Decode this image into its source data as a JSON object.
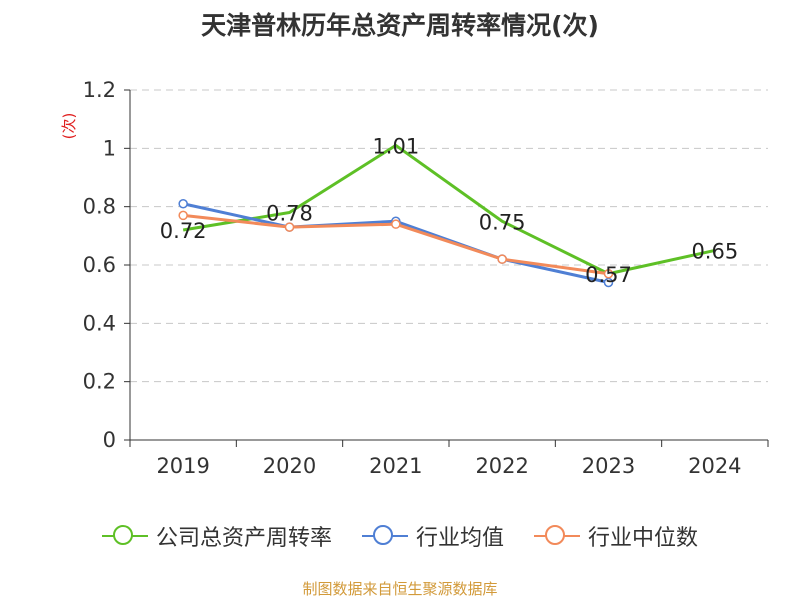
{
  "chart_data": {
    "type": "line",
    "title": "天津普林历年总资产周转率情况(次)",
    "ylabel": "(次)",
    "xlabel": "",
    "categories": [
      "2019",
      "2020",
      "2021",
      "2022",
      "2023",
      "2024"
    ],
    "ylim": [
      0,
      1.2
    ],
    "yticks": [
      "0",
      "0.2",
      "0.4",
      "0.6",
      "0.8",
      "1",
      "1.2"
    ],
    "grid": true,
    "legend_position": "bottom",
    "series": [
      {
        "name": "公司总资产周转率",
        "color": "#5ec026",
        "values": [
          0.72,
          0.78,
          1.01,
          0.75,
          0.57,
          0.65
        ],
        "labels": [
          "0.72",
          "0.78",
          "1.01",
          "0.75",
          "0.57",
          "0.65"
        ]
      },
      {
        "name": "行业均值",
        "color": "#4f7fd4",
        "values": [
          0.81,
          0.73,
          0.75,
          0.62,
          0.54,
          null
        ]
      },
      {
        "name": "行业中位数",
        "color": "#f28a5a",
        "values": [
          0.77,
          0.73,
          0.74,
          0.62,
          0.57,
          null
        ]
      }
    ]
  },
  "source": "制图数据来自恒生聚源数据库"
}
